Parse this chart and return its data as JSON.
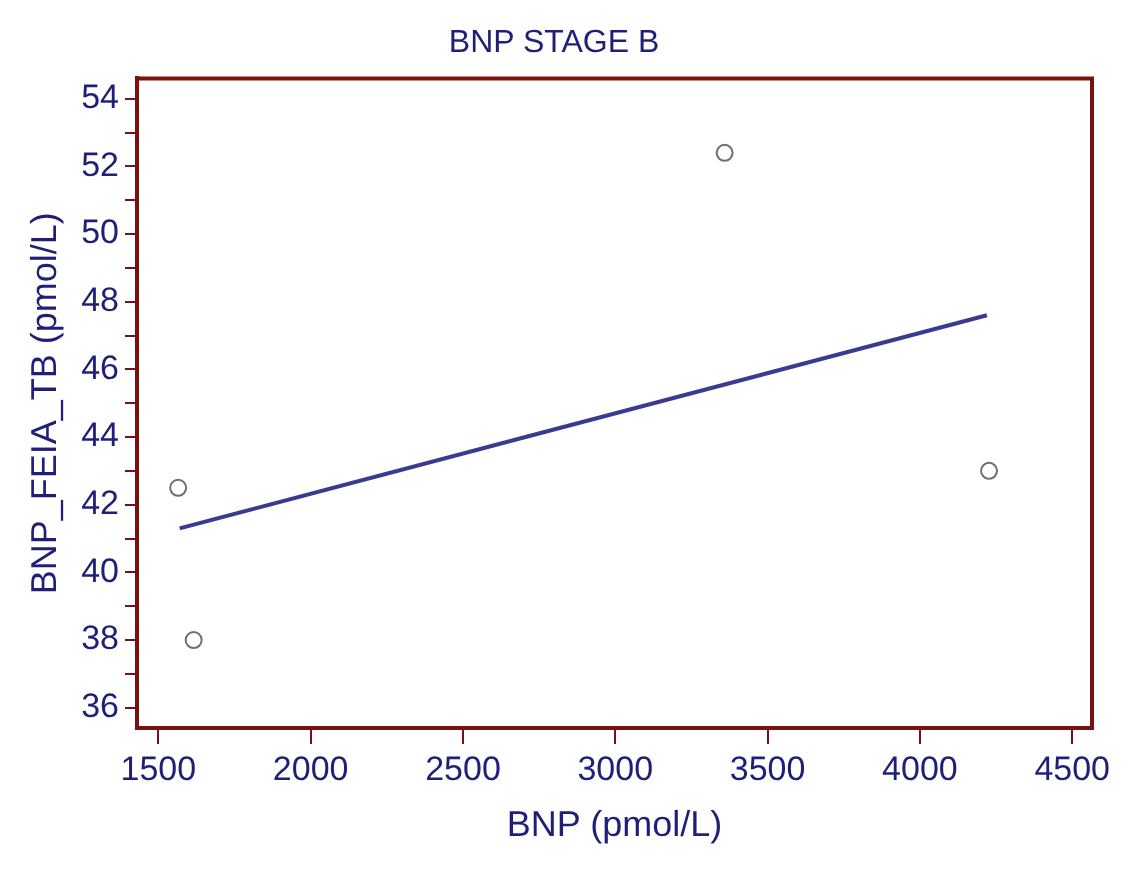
{
  "chart_data": {
    "type": "scatter",
    "title": "BNP STAGE B",
    "xlabel": "BNP (pmol/L)",
    "ylabel": "BNP_FEIA_TB (pmol/L)",
    "xlim": [
      1430,
      4565
    ],
    "xticks": [
      1500,
      2000,
      2500,
      3000,
      3500,
      4000,
      4500
    ],
    "ylim": [
      35.4,
      54.6
    ],
    "yticks": [
      36,
      {
        "value": 37,
        "label": null
      },
      38,
      {
        "value": 39,
        "label": null
      },
      40,
      {
        "value": 41,
        "label": null
      },
      42,
      {
        "value": 43,
        "label": null
      },
      44,
      {
        "value": 45,
        "label": null
      },
      46,
      {
        "value": 47,
        "label": null
      },
      48,
      {
        "value": 49,
        "label": null
      },
      50,
      {
        "value": 51,
        "label": null
      },
      52,
      {
        "value": 53,
        "label": null
      },
      54
    ],
    "grid": false,
    "legend": false,
    "series": [
      {
        "marker": "circle",
        "color": "#6e6e6e",
        "x": [
          1565,
          1616,
          3359,
          4227
        ],
        "values": [
          42.5,
          38.0,
          52.4,
          43.0
        ]
      },
      {
        "type": "line",
        "color": "#3a3a8f",
        "x": [
          1570,
          4220
        ],
        "values": [
          41.3,
          47.6
        ]
      }
    ]
  }
}
